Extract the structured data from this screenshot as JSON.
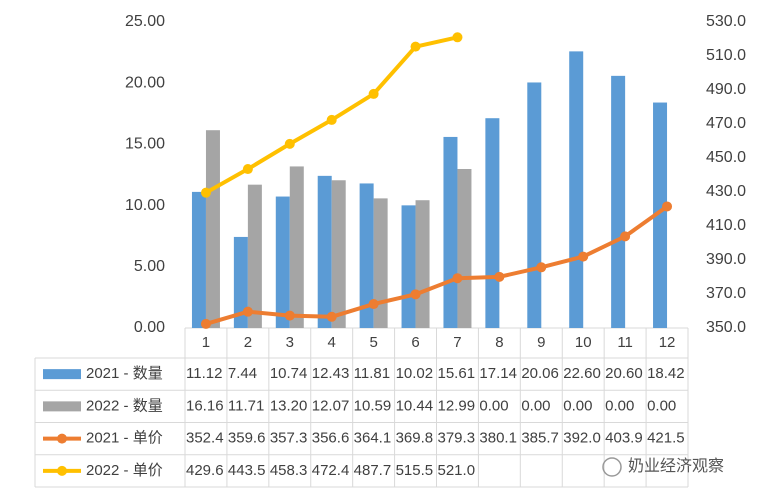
{
  "chart_data": {
    "type": "bar-line-table",
    "categories": [
      "1",
      "2",
      "3",
      "4",
      "5",
      "6",
      "7",
      "8",
      "9",
      "10",
      "11",
      "12"
    ],
    "ylim": [
      0,
      25
    ],
    "yticks": [
      {
        "value": 0,
        "label": "0.00"
      },
      {
        "value": 5,
        "label": "5.00"
      },
      {
        "value": 10,
        "label": "10.00"
      },
      {
        "value": 15,
        "label": "15.00"
      },
      {
        "value": 20,
        "label": "20.00"
      },
      {
        "value": 25,
        "label": "25.00"
      }
    ],
    "y2lim": [
      350,
      530
    ],
    "y2ticks": [
      {
        "value": 350,
        "label": "350.0"
      },
      {
        "value": 370,
        "label": "370.0"
      },
      {
        "value": 390,
        "label": "390.0"
      },
      {
        "value": 410,
        "label": "410.0"
      },
      {
        "value": 430,
        "label": "430.0"
      },
      {
        "value": 450,
        "label": "450.0"
      },
      {
        "value": 470,
        "label": "470.0"
      },
      {
        "value": 490,
        "label": "490.0"
      },
      {
        "value": 510,
        "label": "510.0"
      },
      {
        "value": 530,
        "label": "530.0"
      }
    ],
    "series": [
      {
        "name": "2021 - 数量",
        "kind": "bar",
        "color": "#5b9bd5",
        "values": [
          11.12,
          7.44,
          10.74,
          12.43,
          11.81,
          10.02,
          15.61,
          17.14,
          20.06,
          22.6,
          20.6,
          18.42
        ],
        "value_labels": [
          "11.12",
          "7.44",
          "10.74",
          "12.43",
          "11.81",
          "10.02",
          "15.61",
          "17.14",
          "20.06",
          "22.60",
          "20.60",
          "18.42"
        ]
      },
      {
        "name": "2022 - 数量",
        "kind": "bar",
        "color": "#a5a5a5",
        "values": [
          16.16,
          11.71,
          13.2,
          12.07,
          10.59,
          10.44,
          12.99,
          0,
          0,
          0,
          0,
          0
        ],
        "value_labels": [
          "16.16",
          "11.71",
          "13.20",
          "12.07",
          "10.59",
          "10.44",
          "12.99",
          "0.00",
          "0.00",
          "0.00",
          "0.00",
          "0.00"
        ]
      },
      {
        "name": "2021 - 单价",
        "kind": "line",
        "axis": "y2",
        "color": "#ed7d31",
        "values": [
          352.4,
          359.6,
          357.3,
          356.6,
          364.1,
          369.8,
          379.3,
          380.1,
          385.7,
          392.0,
          403.9,
          421.5
        ],
        "value_labels": [
          "352.4",
          "359.6",
          "357.3",
          "356.6",
          "364.1",
          "369.8",
          "379.3",
          "380.1",
          "385.7",
          "392.0",
          "403.9",
          "421.5"
        ]
      },
      {
        "name": "2022 - 单价",
        "kind": "line",
        "axis": "y2",
        "color": "#ffc000",
        "values": [
          429.6,
          443.5,
          458.3,
          472.4,
          487.7,
          515.5,
          521.0,
          null,
          null,
          null,
          null,
          null
        ],
        "value_labels": [
          "429.6",
          "443.5",
          "458.3",
          "472.4",
          "487.7",
          "515.5",
          "521.0",
          null,
          null,
          null,
          null,
          null
        ]
      }
    ],
    "watermark": "奶业经济观察"
  }
}
